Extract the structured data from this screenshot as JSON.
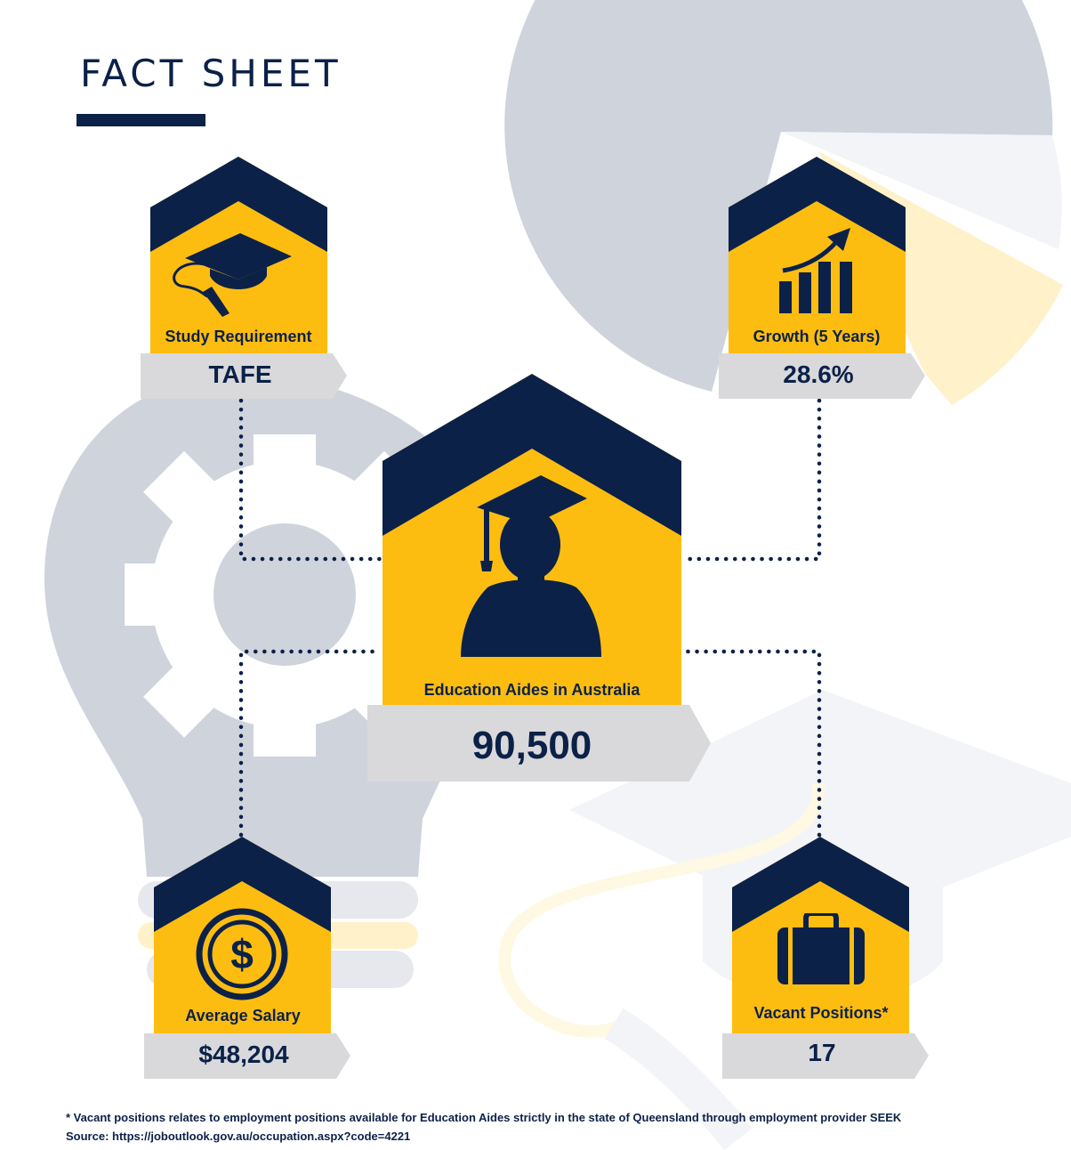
{
  "title": "FACT SHEET",
  "colors": {
    "navy": "#0b2148",
    "gold": "#fdbd10",
    "tag_gray": "#d9d9db",
    "bg_gray": "#cfd3dc"
  },
  "main": {
    "label": "Education Aides in Australia",
    "value": "90,500",
    "icon": "graduate-icon"
  },
  "facts": {
    "study": {
      "label": "Study Requirement",
      "value": "TAFE",
      "icon": "graduation-cap-icon"
    },
    "growth": {
      "label": "Growth (5 Years)",
      "value": "28.6%",
      "icon": "growth-chart-icon"
    },
    "salary": {
      "label": "Average Salary",
      "value": "$48,204",
      "icon": "dollar-coin-icon"
    },
    "vacant": {
      "label": "Vacant Positions*",
      "value": "17",
      "icon": "briefcase-icon"
    }
  },
  "footnote": {
    "note": "* Vacant positions relates to employment positions available for Education Aides strictly in the state of Queensland through employment provider SEEK",
    "source": "Source: https://joboutlook.gov.au/occupation.aspx?code=4221"
  }
}
